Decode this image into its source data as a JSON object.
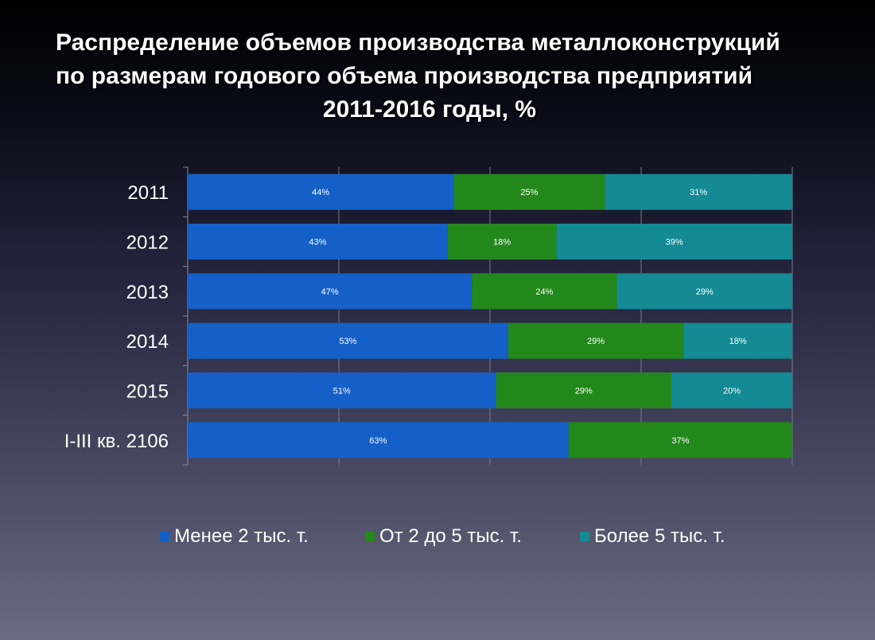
{
  "title": {
    "line1": "Распределение объемов производства металлоконструкций",
    "line2": "по размерам годового объема производства предприятий",
    "line3": "2011-2016 годы, %"
  },
  "colors": {
    "series1": "#1560c8",
    "series2": "#23881c",
    "series3": "#138a94"
  },
  "chart_data": {
    "type": "bar",
    "orientation": "horizontal",
    "stacked": "100%",
    "categories": [
      "2011",
      "2012",
      "2013",
      "2014",
      "2015",
      "I-III кв. 2106"
    ],
    "series": [
      {
        "name": "Менее 2 тыс. т.",
        "values": [
          44,
          43,
          47,
          53,
          51,
          63
        ],
        "labels": [
          "44%",
          "43%",
          "47%",
          "53%",
          "51%",
          "63%"
        ]
      },
      {
        "name": "От 2 до 5 тыс. т.",
        "values": [
          25,
          18,
          24,
          29,
          29,
          37
        ],
        "labels": [
          "25%",
          "18%",
          "24%",
          "29%",
          "29%",
          "37%"
        ]
      },
      {
        "name": "Более 5 тыс. т.",
        "values": [
          31,
          39,
          29,
          18,
          20,
          0
        ],
        "labels": [
          "31%",
          "39%",
          "29%",
          "18%",
          "20%",
          ""
        ]
      }
    ],
    "xlim": [
      0,
      100
    ],
    "grid": true,
    "legend": "bottom"
  }
}
